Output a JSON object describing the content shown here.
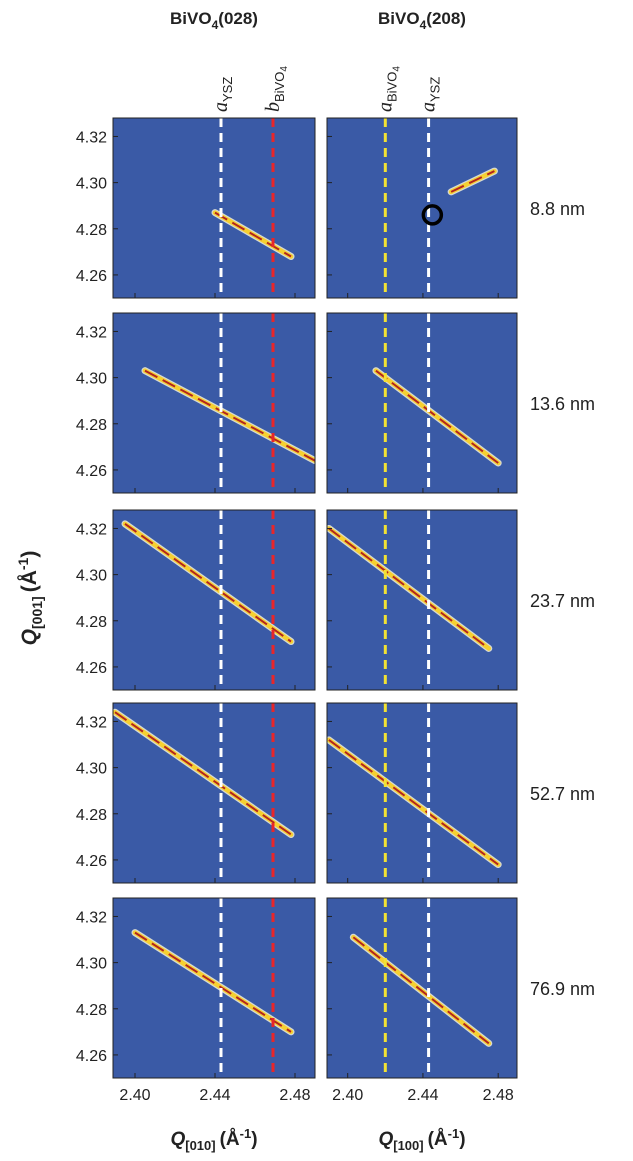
{
  "chart_data": {
    "type": "rsm",
    "background": "#3a5aa6",
    "xlim": [
      2.389,
      2.49
    ],
    "xticks": [
      {
        "value": 2.4,
        "label": "2.40"
      },
      {
        "value": 2.44,
        "label": "2.44"
      },
      {
        "value": 2.48,
        "label": "2.48"
      }
    ],
    "ylim": [
      4.25,
      4.328
    ],
    "yticks": [
      {
        "value": 4.26,
        "label": "4.26"
      },
      {
        "value": 4.28,
        "label": "4.28"
      },
      {
        "value": 4.3,
        "label": "4.30"
      },
      {
        "value": 4.32,
        "label": "4.32"
      }
    ],
    "ylabel": {
      "main": "Q",
      "sub": "[001]",
      "unit": "(Å",
      "sup": "-1",
      "end": ")"
    },
    "columns": [
      {
        "title": {
          "main": "BiVO",
          "sub": "4",
          "rest": "(028)"
        },
        "xlabel": {
          "main": "Q",
          "sub": "[010]",
          "unit": "(Å",
          "sup": "-1",
          "end": ")"
        },
        "refs": [
          {
            "symbol": "a",
            "sub": "YSZ",
            "x": 2.443,
            "color": "#ffffff"
          },
          {
            "symbol": "b",
            "sub": "BiVO",
            "subsub": "4",
            "x": 2.469,
            "color": "#e8262a"
          }
        ]
      },
      {
        "title": {
          "main": "BiVO",
          "sub": "4",
          "rest": "(208)"
        },
        "xlabel": {
          "main": "Q",
          "sub": "[100]",
          "unit": "(Å",
          "sup": "-1",
          "end": ")"
        },
        "refs": [
          {
            "symbol": "a",
            "sub": "BiVO",
            "subsub": "4",
            "x": 2.42,
            "color": "#f2e233"
          },
          {
            "symbol": "a",
            "sub": "YSZ",
            "x": 2.443,
            "color": "#ffffff"
          }
        ]
      }
    ],
    "rows": [
      {
        "label": "8.8 nm",
        "panels": [
          {
            "streaks": [
              {
                "x": [
                  2.44,
                  2.478
                ],
                "y": [
                  4.287,
                  4.268
                ]
              }
            ]
          },
          {
            "streaks": [
              {
                "x": [
                  2.455,
                  2.478
                ],
                "y": [
                  4.296,
                  4.305
                ]
              }
            ],
            "markers": [
              {
                "x": 2.445,
                "y": 4.286
              }
            ]
          }
        ]
      },
      {
        "label": "13.6 nm",
        "panels": [
          {
            "streaks": [
              {
                "x": [
                  2.405,
                  2.49
                ],
                "y": [
                  4.303,
                  4.264
                ]
              }
            ]
          },
          {
            "streaks": [
              {
                "x": [
                  2.415,
                  2.48
                ],
                "y": [
                  4.303,
                  4.263
                ]
              }
            ]
          }
        ]
      },
      {
        "label": "23.7 nm",
        "panels": [
          {
            "streaks": [
              {
                "x": [
                  2.395,
                  2.478
                ],
                "y": [
                  4.322,
                  4.271
                ]
              }
            ]
          },
          {
            "streaks": [
              {
                "x": [
                  2.39,
                  2.475
                ],
                "y": [
                  4.32,
                  4.268
                ]
              }
            ]
          }
        ]
      },
      {
        "label": "52.7 nm",
        "panels": [
          {
            "streaks": [
              {
                "x": [
                  2.39,
                  2.478
                ],
                "y": [
                  4.324,
                  4.271
                ]
              }
            ]
          },
          {
            "streaks": [
              {
                "x": [
                  2.39,
                  2.48
                ],
                "y": [
                  4.312,
                  4.258
                ]
              }
            ]
          }
        ]
      },
      {
        "label": "76.9 nm",
        "panels": [
          {
            "streaks": [
              {
                "x": [
                  2.4,
                  2.478
                ],
                "y": [
                  4.313,
                  4.27
                ]
              }
            ]
          },
          {
            "streaks": [
              {
                "x": [
                  2.403,
                  2.475
                ],
                "y": [
                  4.311,
                  4.265
                ]
              }
            ]
          }
        ]
      }
    ]
  }
}
